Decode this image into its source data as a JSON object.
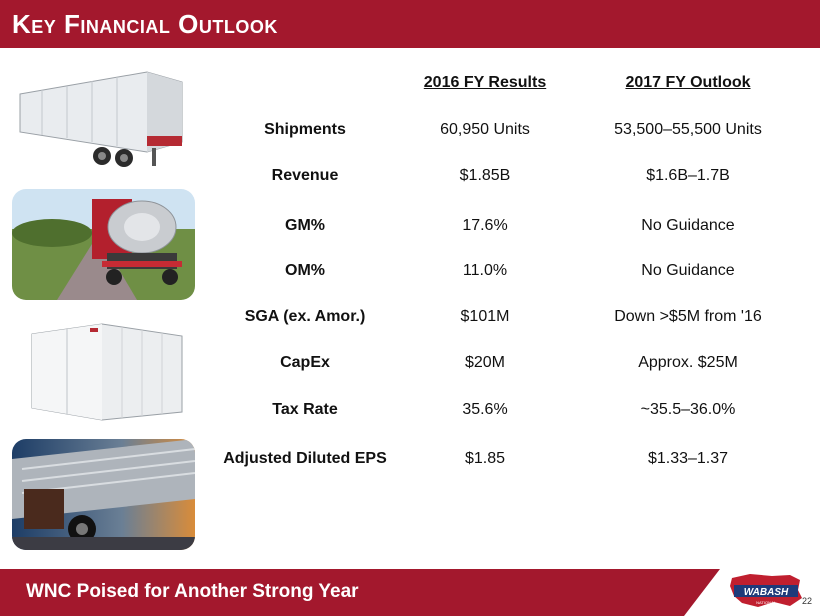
{
  "header": {
    "title": "Key Financial Outlook"
  },
  "table": {
    "col_2016": "2016 FY Results",
    "col_2017": "2017 FY Outlook",
    "rows": [
      {
        "metric": "Shipments",
        "v2016": "60,950 Units",
        "v2017": "53,500–55,500 Units"
      },
      {
        "metric": "Revenue",
        "v2016": "$1.85B",
        "v2017": "$1.6B–1.7B"
      },
      {
        "metric": "GM%",
        "v2016": "17.6%",
        "v2017": "No Guidance"
      },
      {
        "metric": "OM%",
        "v2016": "11.0%",
        "v2017": "No Guidance"
      },
      {
        "metric": "SGA (ex. Amor.)",
        "v2016": "$101M",
        "v2017": "Down >$5M from '16"
      },
      {
        "metric": "CapEx",
        "v2016": "$20M",
        "v2017": "Approx. $25M"
      },
      {
        "metric": "Tax Rate",
        "v2016": "35.6%",
        "v2017": "~35.5–36.0%"
      },
      {
        "metric": "Adjusted Diluted EPS",
        "v2016": "$1.85",
        "v2017": "$1.33–1.37"
      }
    ]
  },
  "footer": {
    "tagline": "WNC Poised for Another Strong Year",
    "page_number": "22"
  },
  "logo": {
    "brand": "WABASH",
    "sub": "NATIONAL"
  },
  "colors": {
    "brand_red": "#a3182d"
  }
}
